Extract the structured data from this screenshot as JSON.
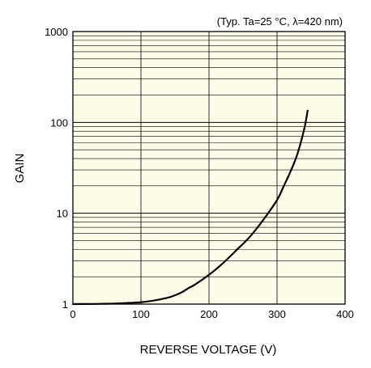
{
  "chart_data": {
    "type": "line",
    "title": "",
    "condition_note": "(Typ. Ta=25 °C, λ=420 nm)",
    "xlabel": "REVERSE VOLTAGE (V)",
    "ylabel": "GAIN",
    "xlim": [
      0,
      400
    ],
    "ylim": [
      1,
      1000
    ],
    "yscale": "log",
    "grid": true,
    "legend": "none",
    "x_ticks": [
      0,
      100,
      200,
      300,
      400
    ],
    "x_tick_labels": [
      "0",
      "100",
      "200",
      "300",
      "400"
    ],
    "y_ticks": [
      1,
      10,
      100,
      1000
    ],
    "y_tick_labels": [
      "1",
      "10",
      "100",
      "1000"
    ],
    "colors": {
      "plot_background": "#FFFBE9",
      "curve": "#000000",
      "grid": "#000000"
    },
    "series": [
      {
        "x": [
          0,
          50,
          80,
          100,
          120,
          140,
          150,
          160,
          170,
          180,
          200,
          220,
          240,
          260,
          280,
          300,
          310,
          320,
          330,
          340,
          345
        ],
        "y": [
          1.0,
          1.01,
          1.03,
          1.05,
          1.1,
          1.18,
          1.25,
          1.35,
          1.5,
          1.65,
          2.1,
          2.8,
          3.9,
          5.5,
          8.5,
          14,
          20,
          29,
          45,
          85,
          135
        ]
      }
    ]
  }
}
